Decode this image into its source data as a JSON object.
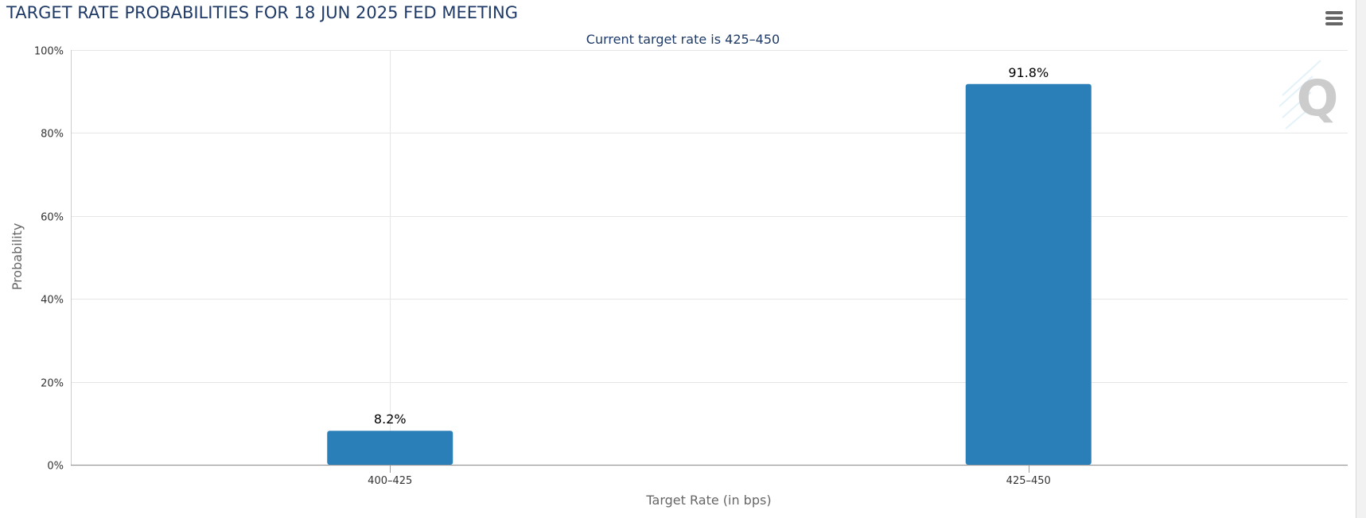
{
  "chart_data": {
    "type": "bar",
    "title": "TARGET RATE PROBABILITIES FOR 18 JUN 2025 FED MEETING",
    "subtitle": "Current target rate is 425–450",
    "categories": [
      "400–425",
      "425–450"
    ],
    "values": [
      8.2,
      91.8
    ],
    "data_labels": [
      "8.2%",
      "91.8%"
    ],
    "xlabel": "Target Rate (in bps)",
    "ylabel": "Probability",
    "ylim": [
      0,
      100
    ],
    "yticks": [
      0,
      20,
      40,
      60,
      80,
      100
    ],
    "ytick_labels": [
      "0%",
      "20%",
      "40%",
      "60%",
      "80%",
      "100%"
    ],
    "grid": true,
    "legend": "none",
    "bar_color": "#2a7fb8",
    "title_color": "#1f3a66"
  },
  "toolbar": {
    "menu_icon": "hamburger-menu-icon"
  },
  "watermark": {
    "icon": "q-logo-watermark-icon"
  }
}
